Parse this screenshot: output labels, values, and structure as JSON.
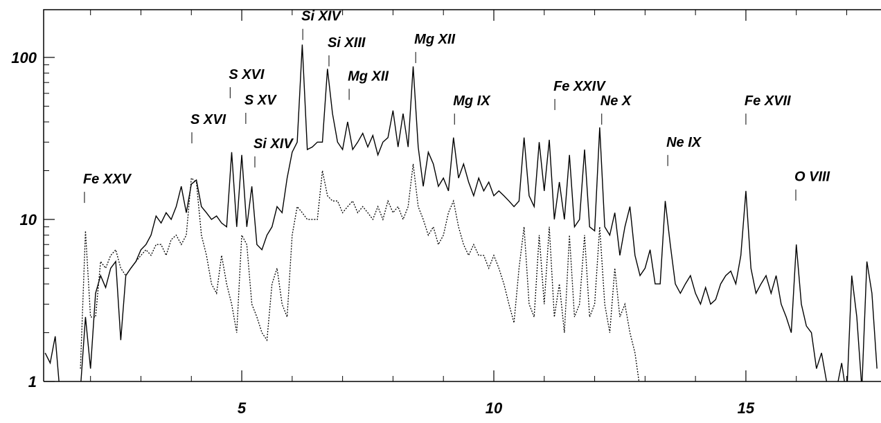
{
  "chart_data": {
    "type": "line",
    "log_y": true,
    "xlim": [
      1.07,
      17.68
    ],
    "ylim": [
      1,
      197
    ],
    "xticks": [
      5,
      10,
      15
    ],
    "yticks": [
      1,
      10,
      100
    ],
    "xminor_ticks": [
      2,
      3,
      4,
      6,
      7,
      8,
      9,
      11,
      12,
      13,
      14,
      16,
      17
    ],
    "yminor_ticks": [
      2,
      3,
      4,
      5,
      6,
      7,
      8,
      9,
      20,
      30,
      40,
      50,
      60,
      70,
      80,
      90
    ],
    "x": [
      1.1,
      1.2,
      1.3,
      1.4,
      1.5,
      1.6,
      1.7,
      1.8,
      1.9,
      2.0,
      2.1,
      2.2,
      2.3,
      2.4,
      2.5,
      2.6,
      2.7,
      2.8,
      2.9,
      3.0,
      3.1,
      3.2,
      3.3,
      3.4,
      3.5,
      3.6,
      3.7,
      3.8,
      3.9,
      4.0,
      4.1,
      4.2,
      4.3,
      4.4,
      4.5,
      4.6,
      4.7,
      4.8,
      4.9,
      5.0,
      5.1,
      5.2,
      5.3,
      5.4,
      5.5,
      5.6,
      5.7,
      5.8,
      5.9,
      6.0,
      6.1,
      6.2,
      6.3,
      6.4,
      6.5,
      6.6,
      6.7,
      6.8,
      6.9,
      7.0,
      7.1,
      7.2,
      7.3,
      7.4,
      7.5,
      7.6,
      7.7,
      7.8,
      7.9,
      8.0,
      8.1,
      8.2,
      8.3,
      8.4,
      8.5,
      8.6,
      8.7,
      8.8,
      8.9,
      9.0,
      9.1,
      9.2,
      9.3,
      9.4,
      9.5,
      9.6,
      9.7,
      9.8,
      9.9,
      10.0,
      10.1,
      10.2,
      10.3,
      10.4,
      10.5,
      10.6,
      10.7,
      10.8,
      10.9,
      11.0,
      11.1,
      11.2,
      11.3,
      11.4,
      11.5,
      11.6,
      11.7,
      11.8,
      11.9,
      12.0,
      12.1,
      12.2,
      12.3,
      12.4,
      12.5,
      12.6,
      12.7,
      12.8,
      12.9,
      13.0,
      13.1,
      13.2,
      13.3,
      13.4,
      13.5,
      13.6,
      13.7,
      13.8,
      13.9,
      14.0,
      14.1,
      14.2,
      14.3,
      14.4,
      14.5,
      14.6,
      14.7,
      14.8,
      14.9,
      15.0,
      15.1,
      15.2,
      15.3,
      15.4,
      15.5,
      15.6,
      15.7,
      15.8,
      15.9,
      16.0,
      16.1,
      16.2,
      16.3,
      16.4,
      16.5,
      16.6,
      16.7,
      16.8,
      16.9,
      17.0,
      17.1,
      17.2,
      17.3,
      17.4,
      17.5,
      17.6
    ],
    "series": [
      {
        "color": "#000000",
        "dash": false,
        "values": [
          1.5,
          1.3,
          1.9,
          0.8,
          0.8,
          0.8,
          0.8,
          0.9,
          2.5,
          1.2,
          3.5,
          4.5,
          3.8,
          5.0,
          5.5,
          1.8,
          4.5,
          5.0,
          5.5,
          6.5,
          7.0,
          8.0,
          10.5,
          9.5,
          11,
          10,
          12,
          16,
          11,
          16.5,
          17.5,
          12,
          11,
          10,
          10.5,
          9.5,
          9,
          26,
          9,
          25,
          9,
          16,
          7,
          6.5,
          8,
          9,
          12,
          11,
          18,
          26,
          30,
          120,
          27,
          28,
          30,
          30,
          85,
          45,
          30,
          27,
          40,
          27,
          30,
          34,
          28,
          33,
          25,
          30,
          32,
          47,
          28,
          45,
          28,
          88,
          28,
          16,
          26,
          22,
          16,
          18,
          15,
          32,
          18,
          22,
          17,
          14,
          18,
          15,
          17,
          14,
          15,
          14,
          13,
          12,
          13,
          32,
          14,
          12,
          30,
          15,
          31,
          10,
          17,
          10,
          25,
          9,
          10,
          27,
          9,
          8.5,
          37,
          9,
          8,
          11,
          6,
          9,
          12,
          6,
          4.5,
          5,
          6.5,
          4,
          4,
          13,
          7,
          4,
          3.5,
          4,
          4.5,
          3.5,
          3.0,
          3.8,
          3,
          3.2,
          4,
          4.5,
          4.8,
          4,
          6,
          15,
          5,
          3.5,
          4,
          4.5,
          3.5,
          4.5,
          3,
          2.5,
          2,
          7,
          3,
          2.2,
          2.0,
          1.2,
          1.5,
          1.0,
          0.8,
          0.9,
          1.3,
          0.8,
          4.5,
          2.5,
          0.9,
          5.5,
          3.5,
          1.2
        ]
      },
      {
        "color": "#000000",
        "dash": true,
        "values": [
          null,
          null,
          null,
          null,
          null,
          null,
          null,
          1.2,
          8.5,
          2.5,
          2.5,
          5.5,
          5,
          6,
          6.5,
          5,
          4.5,
          5,
          5.5,
          6,
          6.5,
          6,
          7,
          7,
          6,
          7.5,
          8,
          7,
          8,
          18,
          17,
          8,
          6,
          4,
          3.5,
          6,
          4,
          3,
          2,
          8,
          7,
          3,
          2.5,
          2,
          1.8,
          4,
          5,
          3,
          2.5,
          8,
          12,
          11,
          10,
          10,
          10,
          20,
          14,
          13,
          13,
          11,
          12,
          13,
          11,
          12,
          11,
          10,
          12,
          10,
          13,
          11,
          12,
          10,
          12,
          22,
          12,
          10,
          8,
          9,
          7,
          8,
          11,
          13,
          9,
          7,
          6,
          7,
          6,
          6,
          5,
          6,
          5,
          4,
          3,
          2.3,
          5,
          9,
          3,
          2.5,
          8,
          3,
          9,
          2.5,
          4,
          2,
          8,
          2.5,
          3,
          8,
          2.5,
          3,
          9,
          3,
          2,
          5,
          2.5,
          3,
          2,
          1.5,
          0.9,
          null,
          null,
          null,
          null,
          null,
          null,
          null,
          null,
          null,
          null,
          null,
          null,
          null,
          null,
          null,
          null,
          null,
          null,
          null,
          null,
          null,
          null,
          null,
          null,
          null,
          null,
          null,
          null,
          null,
          null,
          null,
          null,
          null,
          null,
          null,
          null,
          null,
          null,
          null,
          null,
          null,
          null,
          null,
          null,
          null,
          null,
          null
        ]
      }
    ],
    "annotations": [
      {
        "text": "Fe XXV",
        "x": 1.88,
        "y": 14.8
      },
      {
        "text": "S XVI",
        "x": 4.01,
        "y": 34.5
      },
      {
        "text": "S XVI",
        "x": 4.77,
        "y": 65.5
      },
      {
        "text": "S XV",
        "x": 5.08,
        "y": 45.5
      },
      {
        "text": "Si XIV",
        "x": 5.26,
        "y": 24.5
      },
      {
        "text": "Si XIV",
        "x": 6.21,
        "y": 150
      },
      {
        "text": "Si XIII",
        "x": 6.73,
        "y": 103
      },
      {
        "text": "Mg XII",
        "x": 7.13,
        "y": 64
      },
      {
        "text": "Mg XII",
        "x": 8.45,
        "y": 108
      },
      {
        "text": "Mg IX",
        "x": 9.22,
        "y": 45
      },
      {
        "text": "Fe XXIV",
        "x": 11.21,
        "y": 55.4
      },
      {
        "text": "Ne X",
        "x": 12.14,
        "y": 45
      },
      {
        "text": "Ne IX",
        "x": 13.45,
        "y": 25
      },
      {
        "text": "Fe XVII",
        "x": 15.0,
        "y": 45
      },
      {
        "text": "O VIII",
        "x": 15.99,
        "y": 15.3
      }
    ]
  }
}
